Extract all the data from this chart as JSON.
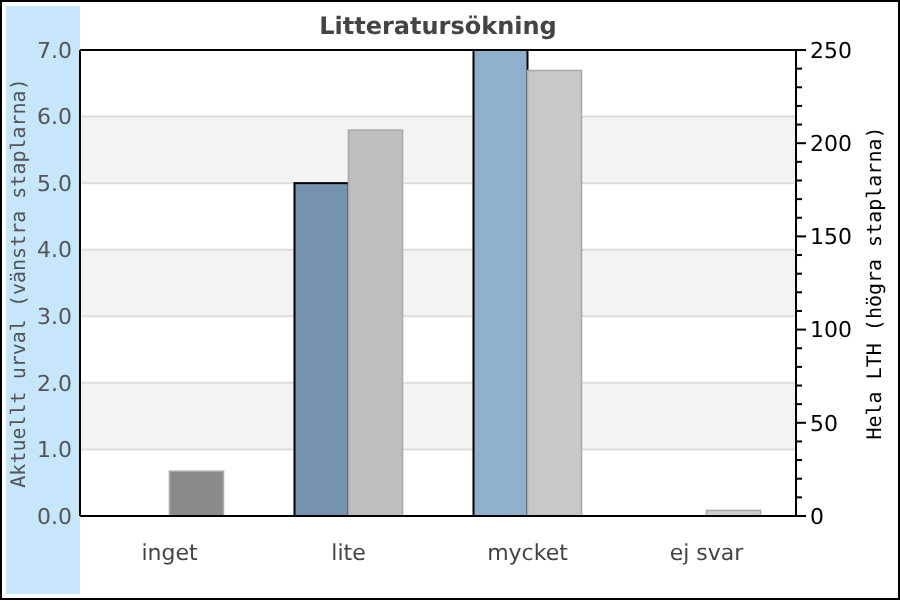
{
  "chart_data": {
    "type": "bar",
    "title": "Litteratursökning",
    "ylabel": "Aktuellt urval (vänstra staplarna)",
    "y2label": "Hela LTH (högra staplarna)",
    "categories": [
      "inget",
      "lite",
      "mycket",
      "ej svar"
    ],
    "series": [
      {
        "colors": [
          "#7393ae",
          "#7393ae",
          "#8fb0cc",
          "#8fb0cc"
        ],
        "values": [
          0,
          5,
          7,
          0
        ]
      },
      {
        "colors": [
          "#8a8a8a",
          "#bebebe",
          "#c8c8c8",
          "#cccccc"
        ],
        "values": [
          24,
          207,
          239,
          3
        ],
        "axis": "y2"
      }
    ],
    "ylim": [
      0,
      7
    ],
    "yticks": [
      {
        "value": 0,
        "label": "0.0"
      },
      {
        "value": 1,
        "label": "1.0"
      },
      {
        "value": 2,
        "label": "2.0"
      },
      {
        "value": 3,
        "label": "3.0"
      },
      {
        "value": 4,
        "label": "4.0"
      },
      {
        "value": 5,
        "label": "5.0"
      },
      {
        "value": 6,
        "label": "6.0"
      },
      {
        "value": 7,
        "label": "7.0"
      }
    ],
    "y2lim": [
      0,
      250
    ],
    "y2ticks": [
      0,
      {
        "value": 10,
        "label": null
      },
      {
        "value": 20,
        "label": null
      },
      {
        "value": 30,
        "label": null
      },
      {
        "value": 40,
        "label": null
      },
      50,
      {
        "value": 60,
        "label": null
      },
      {
        "value": 70,
        "label": null
      },
      {
        "value": 80,
        "label": null
      },
      {
        "value": 90,
        "label": null
      },
      100,
      {
        "value": 110,
        "label": null
      },
      {
        "value": 120,
        "label": null
      },
      {
        "value": 130,
        "label": null
      },
      {
        "value": 140,
        "label": null
      },
      150,
      {
        "value": 160,
        "label": null
      },
      {
        "value": 170,
        "label": null
      },
      {
        "value": 180,
        "label": null
      },
      {
        "value": 190,
        "label": null
      },
      200,
      {
        "value": 210,
        "label": null
      },
      {
        "value": 220,
        "label": null
      },
      {
        "value": 230,
        "label": null
      },
      {
        "value": 240,
        "label": null
      },
      250
    ],
    "grid": "y"
  }
}
